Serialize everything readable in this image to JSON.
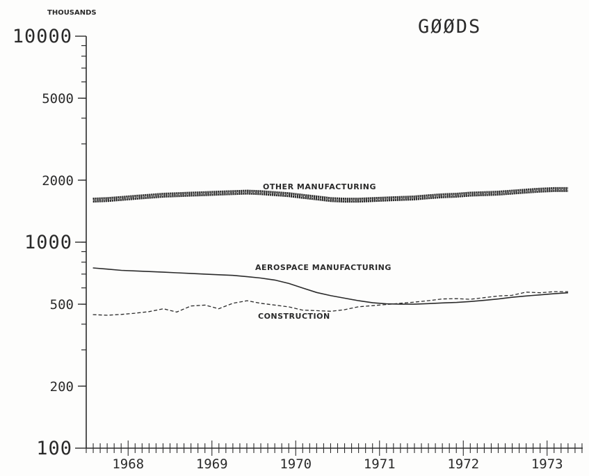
{
  "chart_data": {
    "type": "line",
    "title": "GØØDS",
    "ylabel": "THOUSANDS",
    "yscale": "log",
    "ylim": [
      100,
      10000
    ],
    "yticks_major": [
      100,
      200,
      500,
      1000,
      2000,
      5000,
      10000
    ],
    "ytick_labels": [
      "100",
      "200",
      "500",
      "1000",
      "2000",
      "5000",
      "10000"
    ],
    "xlim": [
      1967.5,
      1973.5
    ],
    "xticks": [
      1968,
      1969,
      1970,
      1971,
      1972,
      1973
    ],
    "xtick_labels": [
      "1968",
      "1969",
      "1970",
      "1971",
      "1972",
      "1973"
    ],
    "grid": false,
    "x": [
      1967.58,
      1967.75,
      1967.92,
      1968.08,
      1968.25,
      1968.42,
      1968.58,
      1968.75,
      1968.92,
      1969.08,
      1969.25,
      1969.42,
      1969.58,
      1969.75,
      1969.92,
      1970.08,
      1970.25,
      1970.42,
      1970.58,
      1970.75,
      1970.92,
      1971.08,
      1971.25,
      1971.42,
      1971.58,
      1971.75,
      1971.92,
      1972.08,
      1972.25,
      1972.42,
      1972.58,
      1972.75,
      1972.92,
      1973.08,
      1973.25
    ],
    "series": [
      {
        "name": "OTHER MANUFACTURING",
        "style": "heavy-hatched",
        "values": [
          1600,
          1610,
          1630,
          1650,
          1670,
          1690,
          1700,
          1710,
          1720,
          1730,
          1740,
          1750,
          1740,
          1720,
          1700,
          1670,
          1640,
          1610,
          1600,
          1600,
          1610,
          1620,
          1630,
          1640,
          1660,
          1680,
          1690,
          1710,
          1720,
          1730,
          1750,
          1770,
          1790,
          1800,
          1800
        ]
      },
      {
        "name": "AEROSPACE MANUFACTURING",
        "style": "solid",
        "values": [
          750,
          740,
          730,
          725,
          720,
          715,
          710,
          705,
          700,
          695,
          690,
          680,
          670,
          655,
          630,
          600,
          570,
          550,
          535,
          520,
          508,
          502,
          500,
          500,
          503,
          507,
          510,
          515,
          522,
          530,
          540,
          548,
          555,
          562,
          568
        ]
      },
      {
        "name": "CONSTRUCTION",
        "style": "dashed",
        "values": [
          445,
          442,
          446,
          452,
          460,
          475,
          458,
          490,
          495,
          475,
          505,
          520,
          505,
          495,
          485,
          468,
          465,
          462,
          470,
          486,
          492,
          498,
          505,
          512,
          520,
          530,
          532,
          528,
          538,
          548,
          552,
          572,
          568,
          575,
          575
        ]
      }
    ],
    "annotations": [
      "OTHER MANUFACTURING",
      "AEROSPACE MANUFACTURING",
      "CONSTRUCTION"
    ],
    "colors": {
      "ink": "#2a2a2a",
      "background": "#fdfdfc"
    }
  }
}
